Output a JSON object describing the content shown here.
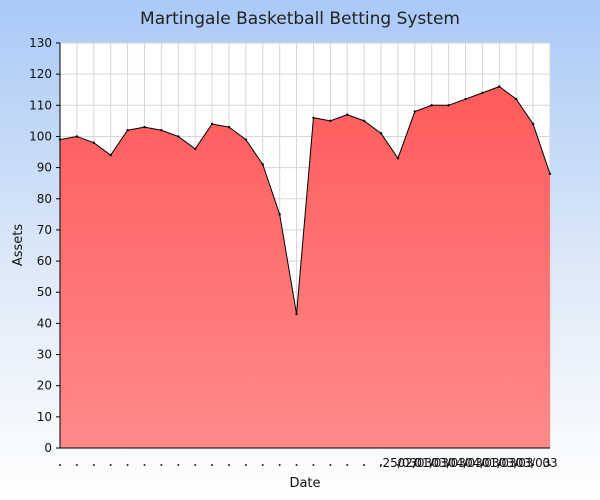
{
  "chart_data": {
    "type": "area",
    "title": "Martingale Basketball Betting System",
    "xlabel": "Date",
    "ylabel": "Assets",
    "ylim": [
      0,
      130
    ],
    "y_ticks": [
      0,
      10,
      20,
      30,
      40,
      50,
      60,
      70,
      80,
      90,
      100,
      110,
      120,
      130
    ],
    "grid": true,
    "x_tick_labels": [
      "",
      "",
      "",
      "",
      "",
      "",
      "",
      "",
      "",
      "",
      "",
      "",
      "",
      "",
      "",
      "",
      "",
      "",
      "",
      "",
      ".25/03",
      "02/03",
      "01/03",
      "03/03",
      "04/03",
      "04/03",
      "01/03",
      "03/03",
      "03/03",
      "03"
    ],
    "series": [
      {
        "values": [
          99,
          100,
          98,
          94,
          102,
          103,
          102,
          100,
          96,
          104,
          103,
          99,
          91,
          75,
          43,
          106,
          105,
          107,
          105,
          101,
          93,
          108,
          110,
          110,
          112,
          114,
          116,
          112,
          104,
          88
        ]
      }
    ],
    "colors": {
      "area_top": "#ff5b5b",
      "area_bottom": "#ff8a8a",
      "line": "#000000"
    }
  }
}
